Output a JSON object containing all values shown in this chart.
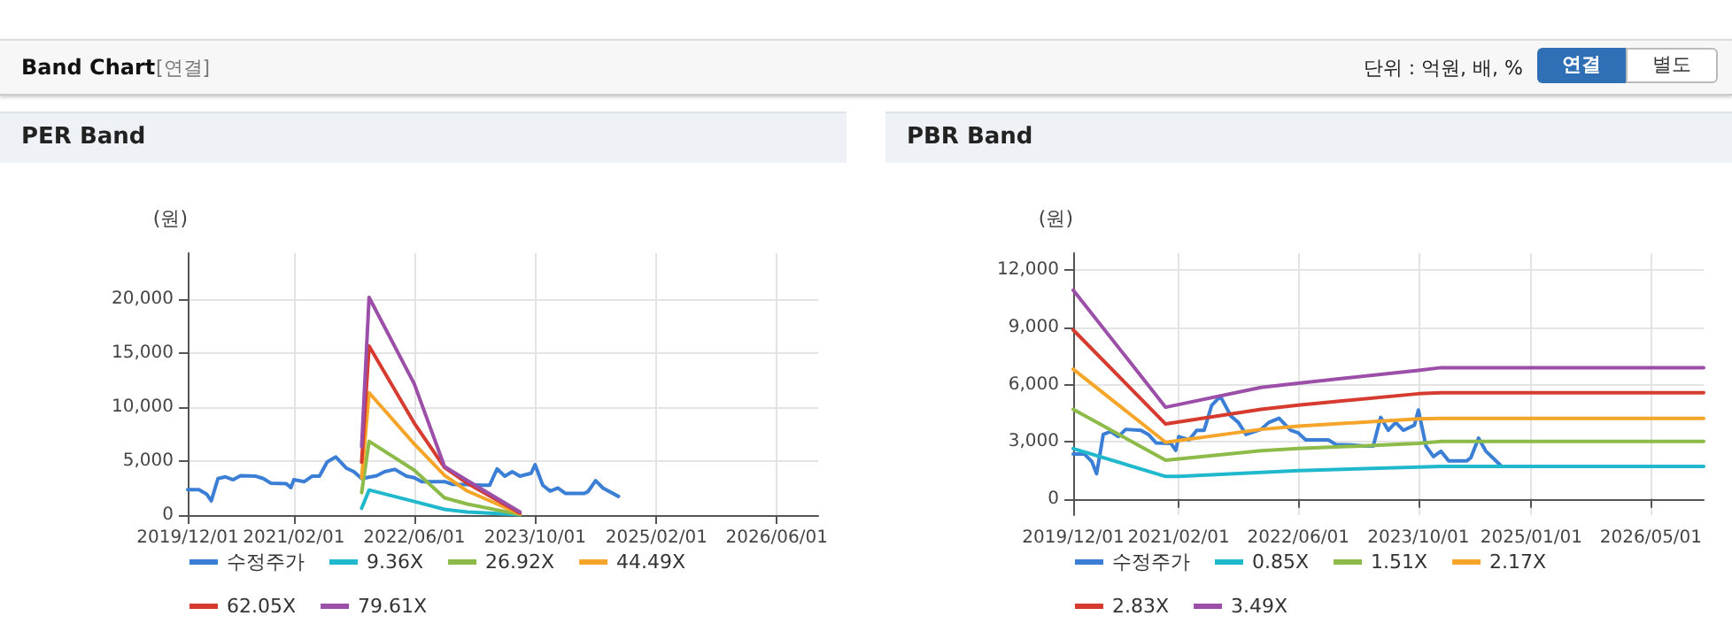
{
  "chart_data": [
    {
      "type": "line",
      "title": "PER Band",
      "ylabel": "(원)",
      "annotations": [
        "Band Chart",
        "[연결]",
        "단위 : 억원, 배, %",
        "연결",
        "별도"
      ],
      "xlim": [
        "2019-12-01",
        "2026-11-15"
      ],
      "xticks": [
        {
          "value": "2019-12-01",
          "label": "2019/12/01"
        },
        {
          "value": "2021-02-01",
          "label": "2021/02/01"
        },
        {
          "value": "2022-06-01",
          "label": "2022/06/01"
        },
        {
          "value": "2023-10-01",
          "label": "2023/10/01"
        },
        {
          "value": "2025-02-01",
          "label": "2025/02/01"
        },
        {
          "value": "2026-06-01",
          "label": "2026/06/01"
        }
      ],
      "ylim": [
        0,
        24250
      ],
      "yticks": [
        0,
        {
          "value": 5000,
          "label": "5,000"
        },
        {
          "value": 10000,
          "label": "10,000"
        },
        {
          "value": 15000,
          "label": "15,000"
        },
        {
          "value": 20000,
          "label": "20,000"
        }
      ],
      "grid": true,
      "legend": "bottom",
      "marker": "none",
      "line_style": "solid",
      "series": [
        {
          "name": "수정주가",
          "color": "#3a7fd5",
          "x": [
            "2019-12-01",
            "2020-01-15",
            "2020-02-15",
            "2020-03-05",
            "2020-04-01",
            "2020-05-01",
            "2020-06-01",
            "2020-07-01",
            "2020-09-01",
            "2020-10-01",
            "2020-11-01",
            "2021-01-01",
            "2021-01-20",
            "2021-02-01",
            "2021-03-15",
            "2021-04-15",
            "2021-05-15",
            "2021-06-15",
            "2021-07-20",
            "2021-09-01",
            "2021-10-01",
            "2021-11-01",
            "2022-01-01",
            "2022-02-01",
            "2022-03-15",
            "2022-05-01",
            "2022-06-01",
            "2022-07-01",
            "2022-10-01",
            "2022-11-01",
            "2023-01-01",
            "2023-03-01",
            "2023-04-01",
            "2023-05-01",
            "2023-06-01",
            "2023-07-01",
            "2023-08-01",
            "2023-09-15",
            "2023-10-01",
            "2023-11-01",
            "2023-12-01",
            "2024-01-01",
            "2024-02-01",
            "2024-04-15",
            "2024-05-01",
            "2024-06-01",
            "2024-07-01",
            "2024-09-01"
          ],
          "values": [
            2360,
            2360,
            1950,
            1320,
            3380,
            3540,
            3270,
            3650,
            3600,
            3380,
            2940,
            2910,
            2550,
            3270,
            3100,
            3600,
            3600,
            4920,
            5380,
            4340,
            4010,
            3380,
            3650,
            4010,
            4230,
            3600,
            3460,
            3100,
            3100,
            2850,
            2830,
            2770,
            2770,
            4280,
            3600,
            4010,
            3600,
            3870,
            4670,
            2770,
            2220,
            2500,
            2000,
            2000,
            2170,
            3190,
            2500,
            1730
          ]
        },
        {
          "name": "9.36X",
          "color": "#20b8cc",
          "x": [
            "2021-11-01",
            "2021-12-01",
            "2022-06-01",
            "2022-10-01",
            "2023-01-01",
            "2023-08-01"
          ],
          "values": [
            630,
            2320,
            1260,
            530,
            290,
            50
          ]
        },
        {
          "name": "26.92X",
          "color": "#8dbb4a",
          "x": [
            "2021-11-01",
            "2021-12-01",
            "2022-06-01",
            "2022-10-01",
            "2023-01-01",
            "2023-08-01"
          ],
          "values": [
            2080,
            6830,
            4160,
            1600,
            1020,
            50
          ]
        },
        {
          "name": "44.49X",
          "color": "#f5a62a",
          "x": [
            "2021-11-01",
            "2021-12-01",
            "2022-06-01",
            "2022-10-01",
            "2023-01-01",
            "2023-08-01"
          ],
          "values": [
            3440,
            11330,
            6590,
            3680,
            2230,
            100
          ]
        },
        {
          "name": "62.05X",
          "color": "#d63b30",
          "x": [
            "2021-11-01",
            "2021-12-01",
            "2022-06-01",
            "2022-10-01",
            "2023-01-01",
            "2023-08-01"
          ],
          "values": [
            4890,
            15640,
            8520,
            4410,
            2950,
            190
          ]
        },
        {
          "name": "79.61X",
          "color": "#9b4fa8",
          "x": [
            "2021-11-01",
            "2021-12-01",
            "2022-06-01",
            "2022-10-01",
            "2023-01-01",
            "2023-08-01"
          ],
          "values": [
            6340,
            20150,
            12160,
            4500,
            3200,
            290
          ]
        }
      ]
    },
    {
      "type": "line",
      "title": "PBR Band",
      "ylabel": "(원)",
      "xlim": [
        "2019-12-01",
        "2026-12-01"
      ],
      "xticks": [
        {
          "value": "2019-12-01",
          "label": "2019/12/01"
        },
        {
          "value": "2021-02-01",
          "label": "2021/02/01"
        },
        {
          "value": "2022-06-01",
          "label": "2022/06/01"
        },
        {
          "value": "2023-10-01",
          "label": "2023/10/01"
        },
        {
          "value": "2025-01-01",
          "label": "2025/01/01"
        },
        {
          "value": "2026-05-01",
          "label": "2026/05/01"
        }
      ],
      "ylim": [
        -850,
        12900
      ],
      "yticks": [
        0,
        {
          "value": 3000,
          "label": "3,000"
        },
        {
          "value": 6000,
          "label": "6,000"
        },
        {
          "value": 9000,
          "label": "9,000"
        },
        {
          "value": 12000,
          "label": "12,000"
        }
      ],
      "grid": true,
      "legend": "bottom",
      "marker": "none",
      "line_style": "solid",
      "series": [
        {
          "name": "수정주가",
          "color": "#3a7fd5",
          "x": [
            "2019-12-01",
            "2020-01-15",
            "2020-02-15",
            "2020-03-05",
            "2020-04-01",
            "2020-05-01",
            "2020-06-01",
            "2020-07-01",
            "2020-09-01",
            "2020-10-01",
            "2020-11-01",
            "2021-01-01",
            "2021-01-20",
            "2021-02-01",
            "2021-03-15",
            "2021-04-15",
            "2021-05-15",
            "2021-06-15",
            "2021-07-20",
            "2021-09-01",
            "2021-10-01",
            "2021-11-01",
            "2022-01-01",
            "2022-02-01",
            "2022-03-15",
            "2022-05-01",
            "2022-06-01",
            "2022-07-01",
            "2022-10-01",
            "2022-11-01",
            "2023-01-01",
            "2023-03-01",
            "2023-04-01",
            "2023-05-01",
            "2023-06-01",
            "2023-07-01",
            "2023-08-01",
            "2023-09-15",
            "2023-10-01",
            "2023-11-01",
            "2023-12-01",
            "2024-01-01",
            "2024-02-01",
            "2024-04-15",
            "2024-05-01",
            "2024-06-01",
            "2024-07-01",
            "2024-09-01"
          ],
          "values": [
            2360,
            2360,
            1950,
            1320,
            3380,
            3540,
            3270,
            3650,
            3600,
            3380,
            2940,
            2910,
            2550,
            3270,
            3100,
            3600,
            3600,
            4920,
            5380,
            4340,
            4010,
            3380,
            3650,
            4010,
            4230,
            3600,
            3460,
            3100,
            3100,
            2850,
            2830,
            2770,
            2770,
            4280,
            3600,
            4010,
            3600,
            3870,
            4670,
            2770,
            2220,
            2500,
            2000,
            2000,
            2170,
            3190,
            2500,
            1730
          ]
        },
        {
          "name": "0.85X",
          "color": "#20b8cc",
          "x": [
            "2019-12-01",
            "2020-12-10",
            "2021-02-01",
            "2022-06-01",
            "2023-10-01",
            "2024-01-01",
            "2026-12-01"
          ],
          "values": [
            2640,
            1180,
            1180,
            1480,
            1670,
            1700,
            1700
          ]
        },
        {
          "name": "1.51X",
          "color": "#8dbb4a",
          "x": [
            "2019-12-01",
            "2020-12-10",
            "2022-01-01",
            "2022-06-01",
            "2023-10-01",
            "2024-01-01",
            "2026-12-01"
          ],
          "values": [
            4700,
            2030,
            2530,
            2640,
            2910,
            3020,
            3020
          ]
        },
        {
          "name": "2.17X",
          "color": "#f5a62a",
          "x": [
            "2019-12-01",
            "2020-12-10",
            "2022-01-01",
            "2022-06-01",
            "2023-10-01",
            "2024-01-01",
            "2026-12-01"
          ],
          "values": [
            6810,
            2970,
            3650,
            3820,
            4200,
            4230,
            4230
          ]
        },
        {
          "name": "2.83X",
          "color": "#d63b30",
          "x": [
            "2019-12-01",
            "2020-12-10",
            "2022-01-01",
            "2022-06-01",
            "2023-10-01",
            "2024-01-01",
            "2026-12-01"
          ],
          "values": [
            8870,
            3930,
            4700,
            4920,
            5520,
            5570,
            5570
          ]
        },
        {
          "name": "3.49X",
          "color": "#9b4fa8",
          "x": [
            "2019-12-01",
            "2020-12-10",
            "2022-01-01",
            "2022-06-01",
            "2023-10-01",
            "2024-01-01",
            "2026-12-01"
          ],
          "values": [
            10960,
            4810,
            5850,
            6070,
            6750,
            6890,
            6890
          ]
        }
      ]
    }
  ]
}
